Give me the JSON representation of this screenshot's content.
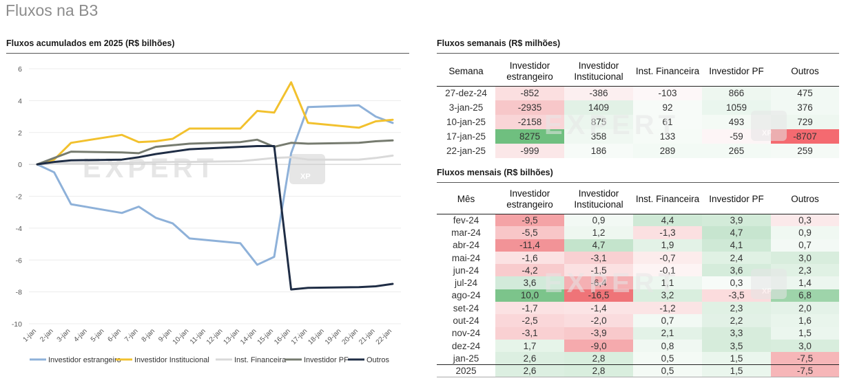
{
  "page_title": "Fluxos na B3",
  "chart_data": {
    "type": "line",
    "title": "Fluxos acumulados em 2025 (R$ bilhões)",
    "xlabel": "",
    "ylabel": "",
    "ylim": [
      -10,
      6
    ],
    "yticks": [
      6,
      4,
      2,
      0,
      -2,
      -4,
      -6,
      -8,
      -10
    ],
    "grid": "horizontal",
    "legend": "bottom",
    "categories": [
      "1-jan",
      "2-jan",
      "3-jan",
      "4-jan",
      "5-jan",
      "6-jan",
      "7-jan",
      "8-jan",
      "9-jan",
      "10-jan",
      "11-jan",
      "12-jan",
      "13-jan",
      "14-jan",
      "15-jan",
      "16-jan",
      "17-jan",
      "18-jan",
      "19-jan",
      "20-jan",
      "21-jan",
      "22-jan"
    ],
    "series": [
      {
        "name": "Investidor estrangeiro",
        "color": "#8eb1d9",
        "points": [
          [
            0,
            0
          ],
          [
            1,
            -0.5
          ],
          [
            2,
            -2.5
          ],
          [
            5,
            -3.05
          ],
          [
            6,
            -2.65
          ],
          [
            7,
            -3.35
          ],
          [
            8,
            -3.7
          ],
          [
            9,
            -4.65
          ],
          [
            12,
            -4.95
          ],
          [
            13,
            -6.3
          ],
          [
            14,
            -5.8
          ],
          [
            15,
            0.7
          ],
          [
            16,
            3.6
          ],
          [
            19,
            3.7
          ],
          [
            20,
            3.0
          ],
          [
            21,
            2.6
          ]
        ]
      },
      {
        "name": "Investidor Institucional",
        "color": "#f2c12e",
        "points": [
          [
            0,
            0
          ],
          [
            1,
            0.3
          ],
          [
            2,
            1.35
          ],
          [
            5,
            1.85
          ],
          [
            6,
            1.4
          ],
          [
            7,
            1.45
          ],
          [
            8,
            1.6
          ],
          [
            9,
            2.25
          ],
          [
            12,
            2.25
          ],
          [
            13,
            3.35
          ],
          [
            14,
            3.25
          ],
          [
            15,
            5.15
          ],
          [
            16,
            2.6
          ],
          [
            19,
            2.3
          ],
          [
            20,
            2.7
          ],
          [
            21,
            2.8
          ]
        ]
      },
      {
        "name": "Inst. Financeira",
        "color": "#d9d9d9",
        "points": [
          [
            0,
            0
          ],
          [
            1,
            0.05
          ],
          [
            2,
            0.08
          ],
          [
            5,
            0.1
          ],
          [
            6,
            0.1
          ],
          [
            7,
            0.12
          ],
          [
            8,
            0.15
          ],
          [
            9,
            0.15
          ],
          [
            12,
            0.2
          ],
          [
            13,
            0.3
          ],
          [
            14,
            0.4
          ],
          [
            15,
            0.45
          ],
          [
            16,
            0.3
          ],
          [
            19,
            0.3
          ],
          [
            20,
            0.4
          ],
          [
            21,
            0.55
          ]
        ]
      },
      {
        "name": "Investidor PF",
        "color": "#767b6f",
        "points": [
          [
            0,
            0
          ],
          [
            1,
            0.4
          ],
          [
            2,
            0.8
          ],
          [
            5,
            0.75
          ],
          [
            6,
            0.7
          ],
          [
            7,
            1.1
          ],
          [
            8,
            1.2
          ],
          [
            9,
            1.3
          ],
          [
            12,
            1.4
          ],
          [
            13,
            1.55
          ],
          [
            14,
            1.1
          ],
          [
            15,
            1.35
          ],
          [
            16,
            1.3
          ],
          [
            19,
            1.35
          ],
          [
            20,
            1.45
          ],
          [
            21,
            1.5
          ]
        ]
      },
      {
        "name": "Outros",
        "color": "#1f2d45",
        "points": [
          [
            0,
            0
          ],
          [
            1,
            0.15
          ],
          [
            2,
            0.25
          ],
          [
            5,
            0.3
          ],
          [
            6,
            0.45
          ],
          [
            7,
            0.65
          ],
          [
            8,
            0.8
          ],
          [
            9,
            0.95
          ],
          [
            12,
            1.1
          ],
          [
            13,
            1.15
          ],
          [
            14,
            1.15
          ],
          [
            15,
            -7.85
          ],
          [
            16,
            -7.75
          ],
          [
            19,
            -7.7
          ],
          [
            20,
            -7.65
          ],
          [
            21,
            -7.5
          ]
        ]
      }
    ]
  },
  "weekly": {
    "title": "Fluxos semanais (R$ milhões)",
    "headers": [
      "Semana",
      "Investidor estrangeiro",
      "Investidor Institucional",
      "Inst. Financeira",
      "Investidor PF",
      "Outros"
    ],
    "rows": [
      [
        "27-dez-24",
        "-852",
        "-386",
        "-103",
        "866",
        "475"
      ],
      [
        "3-jan-25",
        "-2935",
        "1409",
        "92",
        "1059",
        "376"
      ],
      [
        "10-jan-25",
        "-2158",
        "875",
        "61",
        "493",
        "729"
      ],
      [
        "17-jan-25",
        "8275",
        "358",
        "133",
        "-59",
        "-8707"
      ],
      [
        "22-jan-25",
        "-999",
        "186",
        "289",
        "265",
        "259"
      ]
    ],
    "colors": [
      [
        "#ffffff",
        "#fbdfe0",
        "#fceff0",
        "#fdf7f8",
        "#eef7f0",
        "#f2f9f4"
      ],
      [
        "#ffffff",
        "#f7c7c9",
        "#e2f1e6",
        "#f7fbf8",
        "#eaf6ee",
        "#f2f9f4"
      ],
      [
        "#ffffff",
        "#f9d5d7",
        "#ebf6ee",
        "#f7fbf8",
        "#f4faf5",
        "#eef7f0"
      ],
      [
        "#ffffff",
        "#6fbf7f",
        "#f0f8f2",
        "#f6fbf7",
        "#fdf5f6",
        "#f46a70"
      ],
      [
        "#ffffff",
        "#fbe7e8",
        "#f7fbf8",
        "#f3faf5",
        "#f3faf5",
        "#f5faf6"
      ]
    ]
  },
  "monthly": {
    "title": "Fluxos mensais (R$ bilhões)",
    "headers": [
      "Mês",
      "Investidor estrangeiro",
      "Investidor Institucional",
      "Inst. Financeira",
      "Investidor PF",
      "Outros"
    ],
    "rows": [
      [
        "fev-24",
        "-9,5",
        "0,9",
        "4,4",
        "3,9",
        "0,3"
      ],
      [
        "mar-24",
        "-5,5",
        "1,2",
        "-1,3",
        "4,7",
        "0,9"
      ],
      [
        "abr-24",
        "-11,4",
        "4,7",
        "1,9",
        "4,1",
        "0,7"
      ],
      [
        "mai-24",
        "-1,6",
        "-3,1",
        "-0,7",
        "2,4",
        "3,0"
      ],
      [
        "jun-24",
        "-4,2",
        "-1,5",
        "-0,1",
        "3,6",
        "2,3"
      ],
      [
        "jul-24",
        "3,6",
        "-6,4",
        "1,1",
        "0,3",
        "1,4"
      ],
      [
        "ago-24",
        "10,0",
        "-16,5",
        "3,2",
        "-3,5",
        "6,8"
      ],
      [
        "set-24",
        "-1,7",
        "-1,4",
        "-1,2",
        "2,3",
        "2,0"
      ],
      [
        "out-24",
        "-2,5",
        "-2,0",
        "0,7",
        "2,2",
        "1,6"
      ],
      [
        "nov-24",
        "-3,1",
        "-3,9",
        "2,1",
        "3,3",
        "1,5"
      ],
      [
        "dez-24",
        "1,7",
        "-9,0",
        "0,8",
        "3,5",
        "3,0"
      ],
      [
        "jan-25",
        "2,6",
        "2,8",
        "0,5",
        "1,5",
        "-7,5"
      ]
    ],
    "total": [
      "2025",
      "2,6",
      "2,8",
      "0,5",
      "1,5",
      "-7,5"
    ],
    "colors": [
      [
        "#ffffff",
        "#f4a3a6",
        "#f2f9f4",
        "#cfe9d6",
        "#d3ebd9",
        "#fbe9ea"
      ],
      [
        "#ffffff",
        "#f8c6c8",
        "#eef7f0",
        "#fbe0e1",
        "#c7e5cf",
        "#f0f8f2"
      ],
      [
        "#ffffff",
        "#f29397",
        "#c4e4cc",
        "#e3f2e7",
        "#cfe9d6",
        "#f3f9f5"
      ],
      [
        "#ffffff",
        "#fbe2e3",
        "#f9d0d2",
        "#fcecec",
        "#e0f1e4",
        "#d8eddd"
      ],
      [
        "#ffffff",
        "#f8cbcd",
        "#fbe1e2",
        "#fdf4f4",
        "#d5ecdb",
        "#e0f1e4"
      ],
      [
        "#ffffff",
        "#d2eada",
        "#f5b0b3",
        "#edf7f0",
        "#f7fbf8",
        "#ecf6ef"
      ],
      [
        "#ffffff",
        "#7cc48b",
        "#ef7478",
        "#d9eede",
        "#fbdcdd",
        "#9ed4aa"
      ],
      [
        "#ffffff",
        "#fbe2e3",
        "#fbe4e5",
        "#fbe4e5",
        "#e0f1e4",
        "#e4f2e8"
      ],
      [
        "#ffffff",
        "#fad7d9",
        "#fadcde",
        "#f2f9f4",
        "#e2f1e6",
        "#e9f5ec"
      ],
      [
        "#ffffff",
        "#f9d0d2",
        "#f8c9cb",
        "#e3f2e7",
        "#d7ecdc",
        "#ebf6ee"
      ],
      [
        "#ffffff",
        "#e6f4e9",
        "#f5aaad",
        "#f0f8f2",
        "#d6ecdb",
        "#d8eddd"
      ],
      [
        "#ffffff",
        "#dcefe1",
        "#d9eede",
        "#f4faf5",
        "#eaf6ed",
        "#f6b6b8"
      ]
    ],
    "total_colors": [
      "#ffffff",
      "#dcefe1",
      "#d9eede",
      "#f4faf5",
      "#eaf6ed",
      "#f6b6b8"
    ]
  },
  "watermark": {
    "word": "EXPERT",
    "badge": "XP"
  }
}
